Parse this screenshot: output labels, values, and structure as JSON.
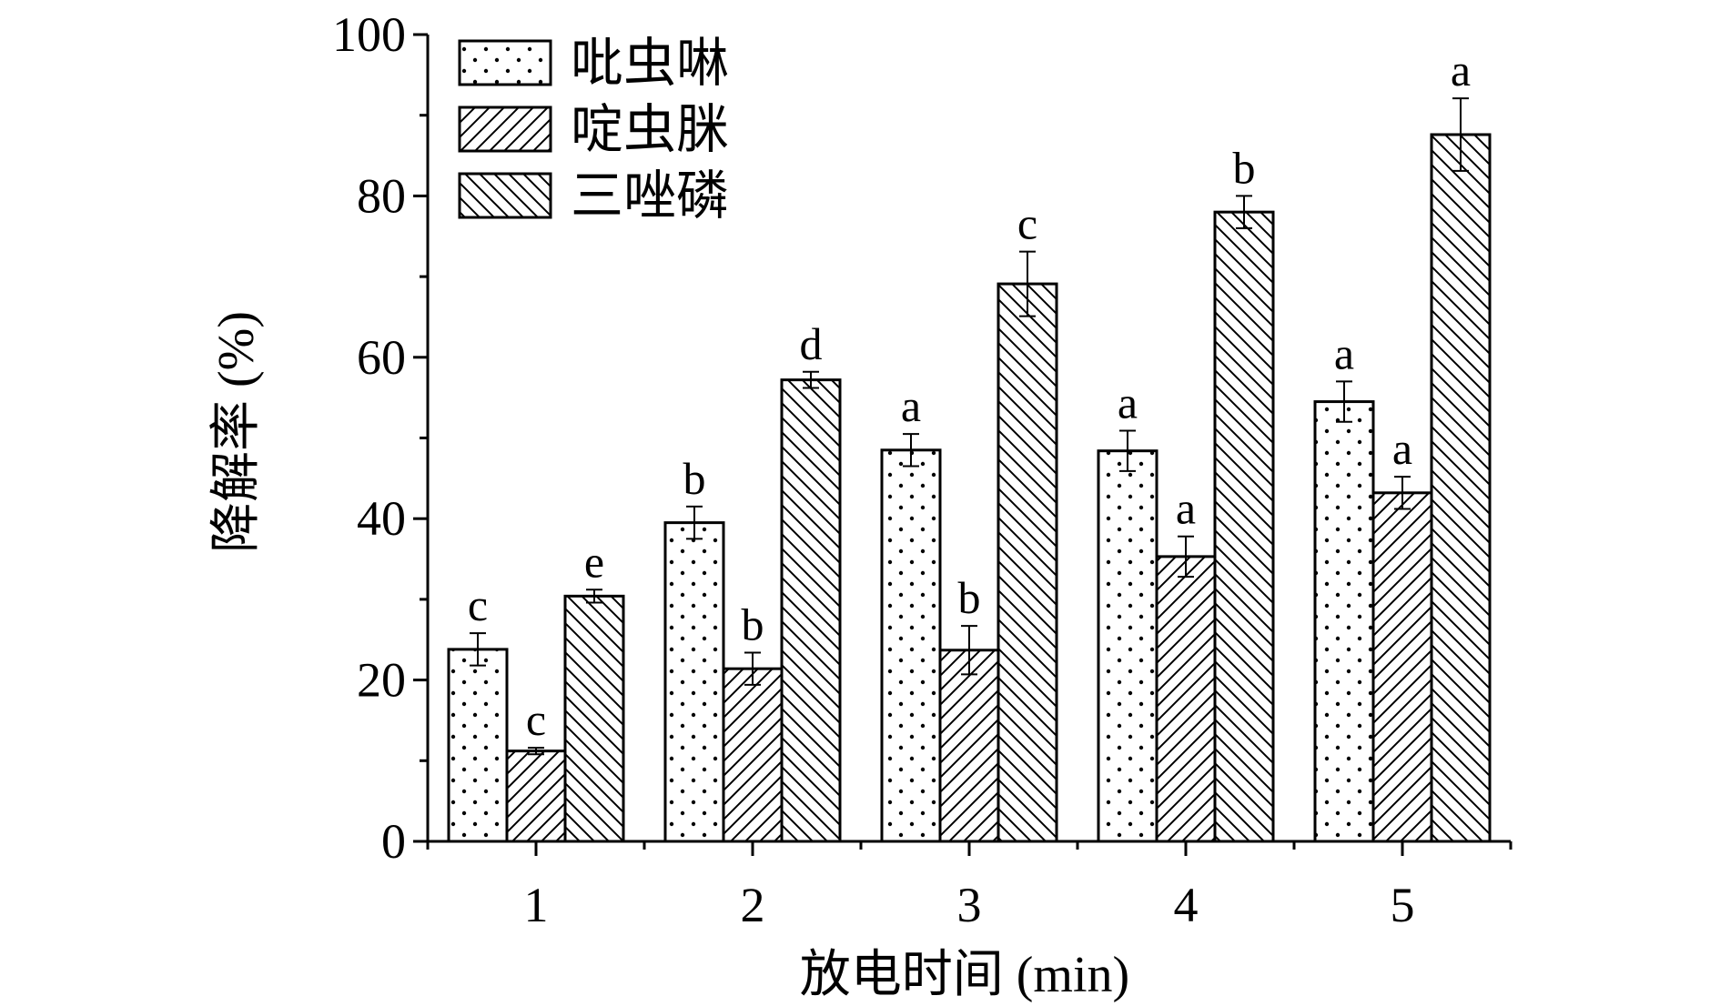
{
  "chart_data": {
    "type": "bar",
    "xlabel": "放电时间 (min)",
    "ylabel": "降解率 (%)",
    "ylim": [
      0,
      100
    ],
    "yticks": [
      0,
      20,
      40,
      60,
      80,
      100
    ],
    "categories": [
      "1",
      "2",
      "3",
      "4",
      "5"
    ],
    "legend_position": "top-left",
    "series": [
      {
        "name": "吡虫啉",
        "pattern": "dots",
        "values": [
          23.8,
          39.5,
          48.5,
          48.4,
          54.5
        ],
        "errors": [
          2.0,
          2.0,
          2.0,
          2.5,
          2.5
        ],
        "labels": [
          "c",
          "b",
          "a",
          "a",
          "a"
        ]
      },
      {
        "name": "啶虫脒",
        "pattern": "hatch-forward",
        "values": [
          11.2,
          21.4,
          23.7,
          35.3,
          43.2
        ],
        "errors": [
          0.4,
          2.0,
          3.0,
          2.5,
          2.0
        ],
        "labels": [
          "c",
          "b",
          "b",
          "a",
          "a"
        ]
      },
      {
        "name": "三唑磷",
        "pattern": "hatch-backward",
        "values": [
          30.4,
          57.2,
          69.1,
          78.0,
          87.6
        ],
        "errors": [
          0.8,
          1.0,
          4.0,
          2.0,
          4.5
        ],
        "labels": [
          "e",
          "d",
          "c",
          "b",
          "a"
        ]
      }
    ]
  }
}
